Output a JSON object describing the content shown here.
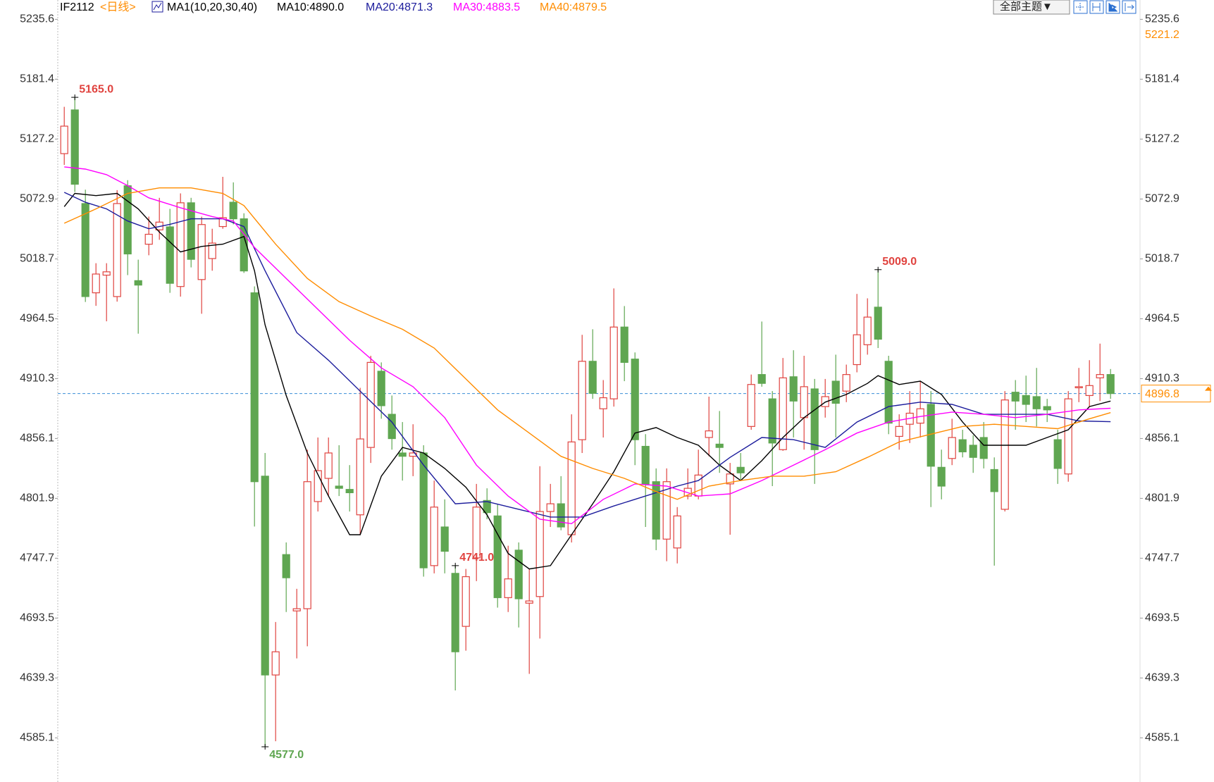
{
  "chart_data": {
    "type": "candlestick",
    "symbol": "IF2112",
    "period": "<日线>",
    "indicator": "MA1(10,20,30,40)",
    "theme_button": "全部主题▼",
    "candles": {
      "up_color": "#e0433f",
      "down_color": "#5fa651",
      "open": [
        5114,
        5153.6,
        5068.8,
        4988,
        5004,
        4984.6,
        5084.9,
        4999,
        5032,
        5045,
        5047.7,
        4993.7,
        5069.5,
        5000,
        5019,
        5048,
        5070,
        5055,
        4988,
        4822,
        4642,
        4751,
        4700,
        4702,
        4799,
        4820,
        4813,
        4810,
        4787,
        4848,
        4917,
        4878,
        4843,
        4840,
        4843,
        4741,
        4776,
        4734,
        4686,
        4748,
        4800,
        4786,
        4712,
        4755,
        4707,
        4713,
        4790,
        4797,
        4769,
        4855,
        4926,
        4883,
        4892,
        4957,
        4928,
        4849,
        4817,
        4765,
        4757,
        4804,
        4804,
        4857,
        4851,
        4815,
        4830,
        4867,
        4914,
        4892,
        4846,
        4912,
        4875,
        4901,
        4885,
        4908,
        4899,
        4923,
        4941,
        4975,
        4926,
        4858,
        4869,
        4870,
        4887,
        4830,
        4838,
        4855,
        4850,
        4857,
        4828,
        4792,
        4898,
        4895,
        4894,
        4885,
        4855,
        4824,
        4902,
        4895,
        4911,
        4914
      ],
      "high": [
        5156.4,
        5165,
        5081.4,
        5014.8,
        5014.8,
        5081,
        5090,
        5018,
        5057,
        5074,
        5064,
        5078,
        5074,
        5057,
        5046,
        5093,
        5088,
        5060,
        4993.8,
        4843,
        4690,
        4762,
        4720,
        4846,
        4857,
        4857,
        4850,
        4832,
        4902,
        4931,
        4925,
        4895,
        4871,
        4869,
        4850,
        4818,
        4801,
        4741,
        4738,
        4815,
        4811,
        4797,
        4759,
        4762,
        4738,
        4831,
        4815,
        4822,
        4878,
        4950,
        4955,
        4909,
        4992,
        4976,
        4934,
        4860,
        4829,
        4829,
        4794,
        4829,
        4846,
        4894,
        4881,
        4834,
        4843,
        4914,
        4962,
        4899,
        4929,
        4936,
        4931,
        4910,
        4910,
        4932,
        4923,
        4987,
        4983,
        5009,
        4931,
        4878,
        4899,
        4908,
        4899,
        4846,
        4874,
        4864,
        4859,
        4871,
        4839,
        4899,
        4909,
        4913,
        4920,
        4892,
        4864,
        4899,
        4920,
        4927,
        4942,
        4919
      ],
      "low": [
        5103.8,
        5079.3,
        4979.7,
        4976.2,
        4962.2,
        4980,
        5004,
        4951,
        5022,
        5036,
        4988,
        4984.6,
        5011,
        4969,
        5008,
        5046,
        5050,
        5006,
        4776.4,
        4577,
        4582,
        4699,
        4657,
        4668,
        4790,
        4804,
        4804,
        4790,
        4769,
        4834,
        4874,
        4846,
        4818,
        4822,
        4731,
        4734,
        4734,
        4628,
        4664,
        4727,
        4783,
        4703,
        4699,
        4685,
        4643,
        4675,
        4776,
        4773,
        4762,
        4843,
        4892,
        4857,
        4885,
        4908,
        4832,
        4776,
        4755,
        4745,
        4743,
        4801,
        4801,
        4840,
        4825,
        4769,
        4818,
        4864,
        4903,
        4813,
        4845,
        4857,
        4846,
        4815,
        4875,
        4857,
        4889,
        4916,
        4932,
        4938,
        4860,
        4846,
        4852,
        4857,
        4794,
        4801,
        4832,
        4839,
        4825,
        4829,
        4741,
        4790,
        4864,
        4871,
        4867,
        4871,
        4815,
        4817,
        4889,
        4885,
        4890,
        4892
      ],
      "close": [
        5138.9,
        5086.3,
        4984.6,
        5005,
        5007,
        5068.8,
        5023.2,
        4995,
        5041,
        5052,
        4996.6,
        5069.5,
        5018.3,
        5049.8,
        5033,
        5056,
        5055,
        5007.8,
        4817,
        4642,
        4663,
        4730,
        4702,
        4817,
        4827,
        4843,
        4811,
        4807,
        4855.7,
        4925,
        4885.8,
        4856,
        4840,
        4843,
        4739,
        4794,
        4754,
        4663,
        4731,
        4794,
        4789,
        4712,
        4729,
        4711,
        4709,
        4790,
        4797,
        4776,
        4853,
        4926,
        4897,
        4893,
        4957,
        4925,
        4855,
        4815,
        4765,
        4817,
        4786,
        4811,
        4823,
        4863,
        4848,
        4824,
        4825,
        4905,
        4906,
        4852,
        4911,
        4890,
        4903,
        4846,
        4894,
        4888,
        4914,
        4950,
        4966,
        4946,
        4870,
        4867,
        4879,
        4883,
        4831,
        4813,
        4857,
        4844,
        4839,
        4838,
        4808,
        4891,
        4890,
        4887,
        4883,
        4882,
        4829,
        4892,
        4903,
        4904,
        4914,
        4896.8
      ]
    },
    "series": [
      {
        "name": "MA10:4890.0",
        "color": "#000000",
        "x": [
          0,
          1,
          3,
          5,
          7,
          9,
          11,
          13,
          15,
          17,
          18,
          19,
          21,
          23,
          25,
          27,
          28,
          30,
          32,
          34,
          36,
          38,
          40,
          42,
          44,
          46,
          48,
          50,
          52,
          54,
          56,
          58,
          60,
          62,
          64,
          66,
          68,
          70,
          72,
          74,
          76,
          77,
          79,
          81,
          83,
          85,
          87,
          89,
          91,
          93,
          95,
          97,
          99
        ],
        "values": [
          5066,
          5078,
          5076,
          5078,
          5064,
          5043,
          5025,
          5030,
          5032,
          5039,
          5008,
          4959,
          4895,
          4843,
          4804,
          4769,
          4769,
          4822,
          4848,
          4843,
          4829,
          4812,
          4787,
          4752,
          4738,
          4741,
          4769,
          4797,
          4826,
          4861,
          4866,
          4857,
          4850,
          4832,
          4818,
          4836,
          4857,
          4875,
          4889,
          4896,
          4906,
          4913,
          4905,
          4908,
          4896,
          4871,
          4850,
          4850,
          4850,
          4857,
          4864,
          4885,
          4890.0
        ]
      },
      {
        "name": "MA20:4871.3",
        "color": "#1c1c9c",
        "x": [
          0,
          2,
          4,
          6,
          8,
          10,
          12,
          15,
          17,
          19,
          22,
          25,
          28,
          31,
          34,
          37,
          40,
          43,
          46,
          49,
          52,
          55,
          58,
          60,
          63,
          66,
          69,
          72,
          75,
          78,
          81,
          84,
          87,
          90,
          93,
          96,
          99
        ],
        "values": [
          5079,
          5070,
          5064,
          5053,
          5046,
          5050,
          5055,
          5055,
          5048,
          5008,
          4952,
          4927,
          4899,
          4871,
          4832,
          4797,
          4799,
          4792,
          4785,
          4785,
          4795,
          4804,
          4813,
          4818,
          4839,
          4857,
          4855,
          4848,
          4871,
          4885,
          4889,
          4887,
          4878,
          4878,
          4878,
          4872,
          4871.3
        ]
      },
      {
        "name": "MA30:4883.5",
        "color": "#ff00ff",
        "x": [
          0,
          2,
          4,
          6,
          8,
          11,
          14,
          16,
          18,
          21,
          24,
          27,
          30,
          33,
          36,
          39,
          42,
          45,
          48,
          51,
          54,
          57,
          60,
          63,
          66,
          69,
          72,
          75,
          78,
          81,
          84,
          87,
          90,
          93,
          96,
          99
        ],
        "values": [
          5102,
          5100,
          5095,
          5085,
          5074,
          5065,
          5057,
          5053,
          5029,
          5001,
          4973,
          4945,
          4920,
          4903,
          4875,
          4832,
          4804,
          4783,
          4779,
          4801,
          4815,
          4813,
          4804,
          4806,
          4818,
          4832,
          4846,
          4861,
          4871,
          4876,
          4880,
          4878,
          4875,
          4878,
          4882,
          4883.5
        ]
      },
      {
        "name": "MA40:4879.5",
        "color": "#ff8c00",
        "x": [
          0,
          3,
          6,
          9,
          12,
          15,
          17,
          20,
          23,
          26,
          29,
          32,
          35,
          38,
          41,
          44,
          47,
          50,
          53,
          56,
          58,
          61,
          64,
          67,
          70,
          73,
          76,
          79,
          82,
          85,
          88,
          91,
          94,
          97,
          99
        ],
        "values": [
          5051,
          5064,
          5078,
          5083,
          5083,
          5078,
          5067,
          5032,
          5001,
          4980,
          4967,
          4955,
          4938,
          4910,
          4882,
          4861,
          4840,
          4829,
          4820,
          4808,
          4801,
          4813,
          4818,
          4822,
          4822,
          4826,
          4839,
          4853,
          4860,
          4867,
          4869,
          4867,
          4865,
          4874,
          4879.5
        ]
      }
    ],
    "ylim": [
      4545.1,
      5253.1
    ],
    "yticks": [
      5235.6,
      5181.4,
      5127.2,
      5072.9,
      5018.7,
      4964.5,
      4910.3,
      4856.1,
      4801.9,
      4747.7,
      4693.5,
      4639.3,
      4585.1
    ],
    "annotations": [
      {
        "value": 5165,
        "label": "5165.0"
      },
      {
        "value": 4577,
        "label": "4577.0"
      },
      {
        "value": 5009,
        "label": "5009.0"
      },
      {
        "value": 4741,
        "label": "4741.0"
      }
    ],
    "last_price": {
      "value": 4896.8,
      "label": "4896.8"
    },
    "marker_price": {
      "value": 5221.2,
      "label": "5221.2"
    }
  }
}
